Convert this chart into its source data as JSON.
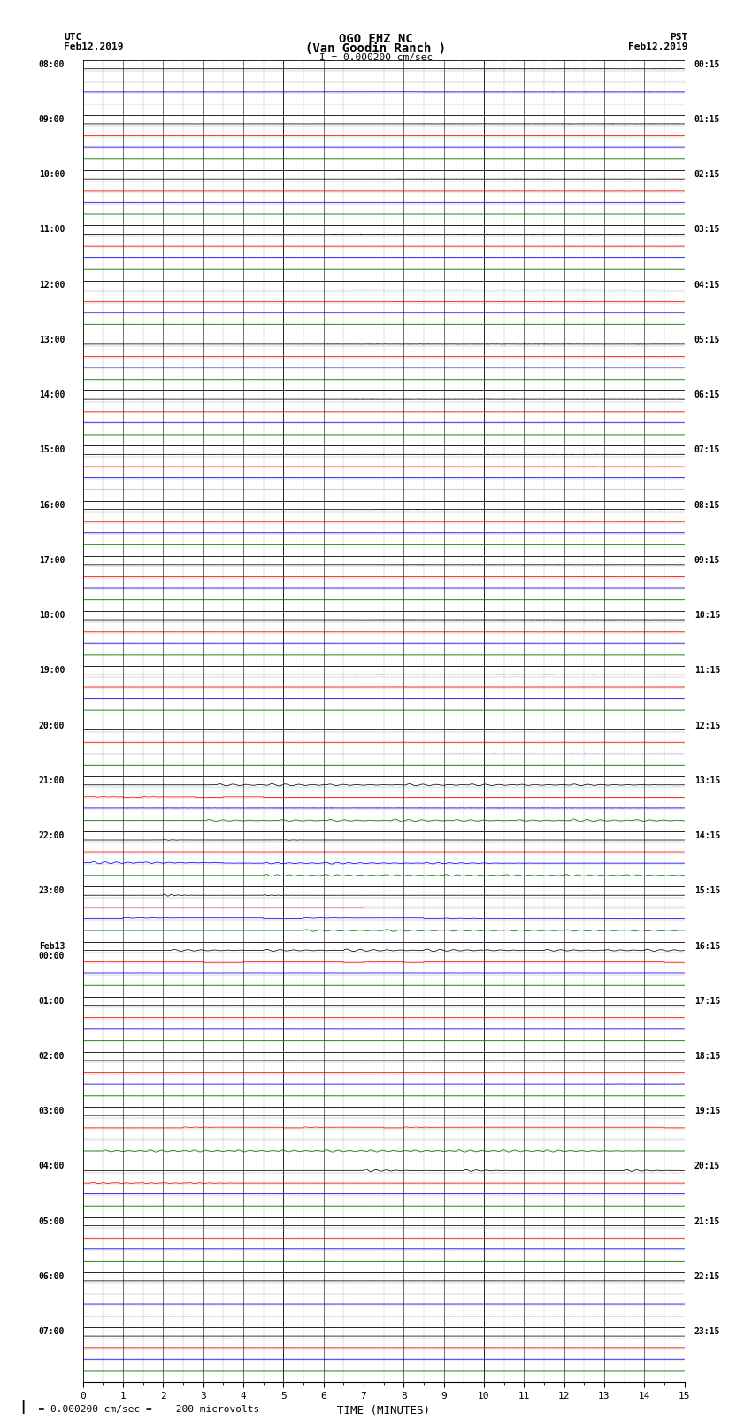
{
  "title_line1": "OGO EHZ NC",
  "title_line2": "(Van Goodin Ranch )",
  "title_line3": "I = 0.000200 cm/sec",
  "left_label_line1": "UTC",
  "left_label_line2": "Feb12,2019",
  "right_label_line1": "PST",
  "right_label_line2": "Feb12,2019",
  "bottom_label": "TIME (MINUTES)",
  "bottom_note": "  = 0.000200 cm/sec =    200 microvolts",
  "utc_times": [
    "08:00",
    "09:00",
    "10:00",
    "11:00",
    "12:00",
    "13:00",
    "14:00",
    "15:00",
    "16:00",
    "17:00",
    "18:00",
    "19:00",
    "20:00",
    "21:00",
    "22:00",
    "23:00",
    "Feb13\n00:00",
    "01:00",
    "02:00",
    "03:00",
    "04:00",
    "05:00",
    "06:00",
    "07:00"
  ],
  "pst_times": [
    "00:15",
    "01:15",
    "02:15",
    "03:15",
    "04:15",
    "05:15",
    "06:15",
    "07:15",
    "08:15",
    "09:15",
    "10:15",
    "11:15",
    "12:15",
    "13:15",
    "14:15",
    "15:15",
    "16:15",
    "17:15",
    "18:15",
    "19:15",
    "20:15",
    "21:15",
    "22:15",
    "23:15"
  ],
  "n_rows": 24,
  "minutes": 15,
  "background_color": "#ffffff",
  "grid_major_color": "#000000",
  "grid_minor_color": "#aaaaaa",
  "figsize": [
    8.5,
    16.13
  ],
  "dpi": 100
}
